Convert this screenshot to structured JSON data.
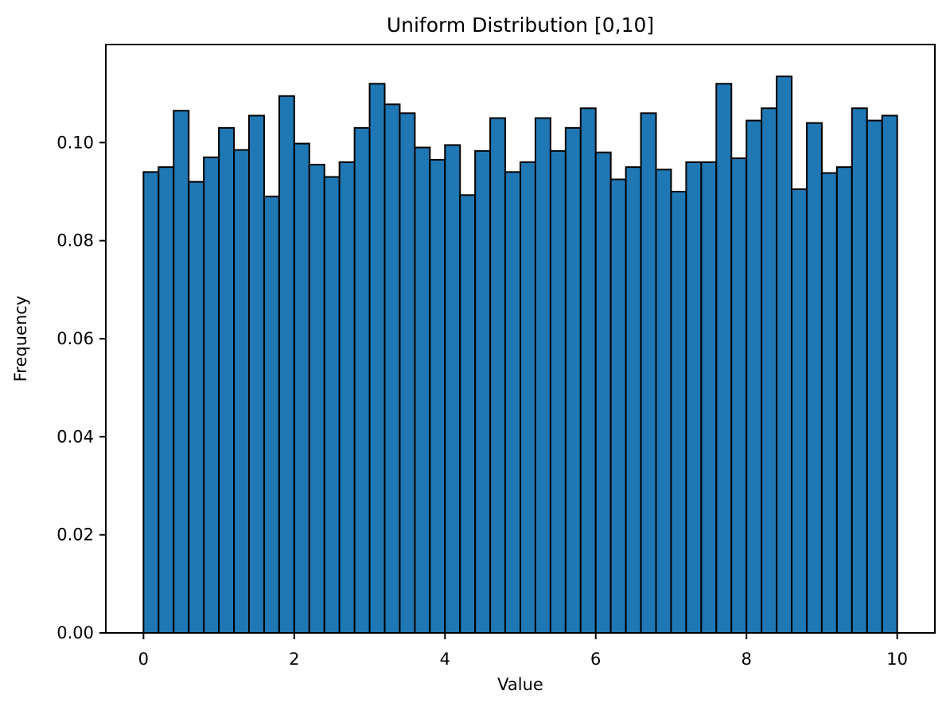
{
  "chart_data": {
    "type": "bar",
    "subtype": "histogram",
    "title": "Uniform Distribution [0,10]",
    "xlabel": "Value",
    "ylabel": "Frequency",
    "xlim": [
      -0.5,
      10.5
    ],
    "ylim": [
      0,
      0.12
    ],
    "x_ticks": [
      0,
      2,
      4,
      6,
      8,
      10
    ],
    "x_tick_labels": [
      "0",
      "2",
      "4",
      "6",
      "8",
      "10"
    ],
    "y_ticks": [
      0.0,
      0.02,
      0.04,
      0.06,
      0.08,
      0.1
    ],
    "y_tick_labels": [
      "0.00",
      "0.02",
      "0.04",
      "0.06",
      "0.08",
      "0.10"
    ],
    "grid": false,
    "legend": "none",
    "bins": 50,
    "bin_start": 0,
    "bin_width": 0.2,
    "densities": [
      0.094,
      0.095,
      0.1065,
      0.092,
      0.097,
      0.103,
      0.0985,
      0.1055,
      0.089,
      0.1095,
      0.0998,
      0.0955,
      0.093,
      0.096,
      0.103,
      0.112,
      0.1078,
      0.106,
      0.099,
      0.0965,
      0.0995,
      0.0893,
      0.0983,
      0.105,
      0.094,
      0.096,
      0.105,
      0.0983,
      0.103,
      0.107,
      0.098,
      0.0925,
      0.095,
      0.106,
      0.0945,
      0.09,
      0.096,
      0.096,
      0.112,
      0.0968,
      0.1045,
      0.107,
      0.1135,
      0.0905,
      0.104,
      0.0938,
      0.095,
      0.107,
      0.1045,
      0.1055
    ],
    "colors": {
      "bar_fill": "#1f77b4",
      "bar_edge": "#000000",
      "spine": "#000000",
      "text": "#000000",
      "background": "#ffffff"
    }
  }
}
